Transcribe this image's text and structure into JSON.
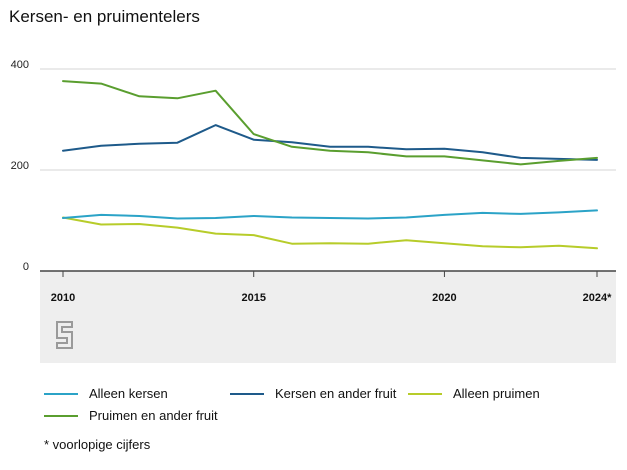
{
  "header": {
    "title": "Kersen- en pruimentelers"
  },
  "footnote": "* voorlopige cijfers",
  "logo_icon": "cbs-logo-icon",
  "chart_data": {
    "type": "line",
    "title": "Kersen- en pruimentelers",
    "xlabel": "",
    "ylabel": "",
    "x": [
      2010,
      2011,
      2012,
      2013,
      2014,
      2015,
      2016,
      2017,
      2018,
      2019,
      2020,
      2021,
      2022,
      2023,
      2024
    ],
    "x_ticks": [
      {
        "value": 2010,
        "label": "2010"
      },
      {
        "value": 2015,
        "label": "2015"
      },
      {
        "value": 2020,
        "label": "2020"
      },
      {
        "value": 2024,
        "label": "2024*"
      }
    ],
    "y_ticks": [
      {
        "value": 0,
        "label": "0"
      },
      {
        "value": 200,
        "label": "200"
      },
      {
        "value": 400,
        "label": "400"
      }
    ],
    "xlim": [
      2010,
      2024
    ],
    "ylim": [
      0,
      400
    ],
    "grid": true,
    "legend_position": "bottom",
    "series": [
      {
        "name": "Alleen kersen",
        "color": "#2ba3c7",
        "values": [
          105,
          111,
          109,
          104,
          105,
          109,
          106,
          105,
          104,
          106,
          111,
          115,
          113,
          116,
          120
        ]
      },
      {
        "name": "Kersen en ander fruit",
        "color": "#1e5a8a",
        "values": [
          238,
          248,
          252,
          254,
          289,
          260,
          255,
          246,
          246,
          241,
          242,
          235,
          224,
          222,
          220
        ]
      },
      {
        "name": "Alleen pruimen",
        "color": "#b7cc2a",
        "values": [
          106,
          92,
          93,
          86,
          74,
          71,
          54,
          55,
          54,
          61,
          55,
          49,
          47,
          50,
          45
        ]
      },
      {
        "name": "Pruimen en ander fruit",
        "color": "#5a9e2f",
        "values": [
          376,
          371,
          346,
          342,
          357,
          271,
          246,
          238,
          235,
          227,
          227,
          219,
          211,
          218,
          224
        ]
      }
    ]
  }
}
